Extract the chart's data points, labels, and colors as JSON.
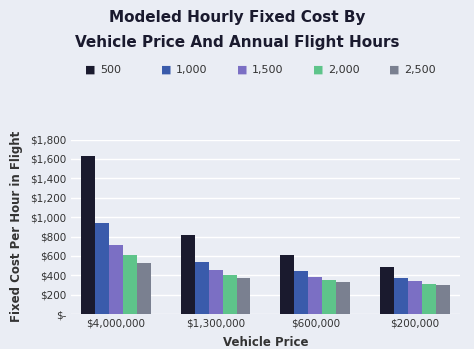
{
  "title_line1": "Modeled Hourly Fixed Cost By",
  "title_line2": "Vehicle Price And Annual Flight Hours",
  "xlabel": "Vehicle Price",
  "ylabel": "Fixed Cost Per Hour in Flight",
  "categories": [
    "$4,000,000",
    "$1,300,000",
    "$600,000",
    "$200,000"
  ],
  "legend_labels": [
    "500",
    "1,000",
    "1,500",
    "2,000",
    "2,500"
  ],
  "bar_colors": [
    "#1a1a2e",
    "#3a5bab",
    "#7b6fc4",
    "#5ec48a",
    "#7a8090"
  ],
  "values": [
    [
      1630,
      940,
      715,
      605,
      530
    ],
    [
      820,
      535,
      455,
      400,
      370
    ],
    [
      610,
      440,
      385,
      350,
      330
    ],
    [
      490,
      375,
      340,
      315,
      305
    ]
  ],
  "ylim": [
    0,
    1800
  ],
  "yticks": [
    0,
    200,
    400,
    600,
    800,
    1000,
    1200,
    1400,
    1600,
    1800
  ],
  "background_color": "#eaedf4",
  "grid_color": "#ffffff",
  "title_fontsize": 11,
  "axis_label_fontsize": 8.5,
  "tick_fontsize": 7.5,
  "legend_fontsize": 8
}
